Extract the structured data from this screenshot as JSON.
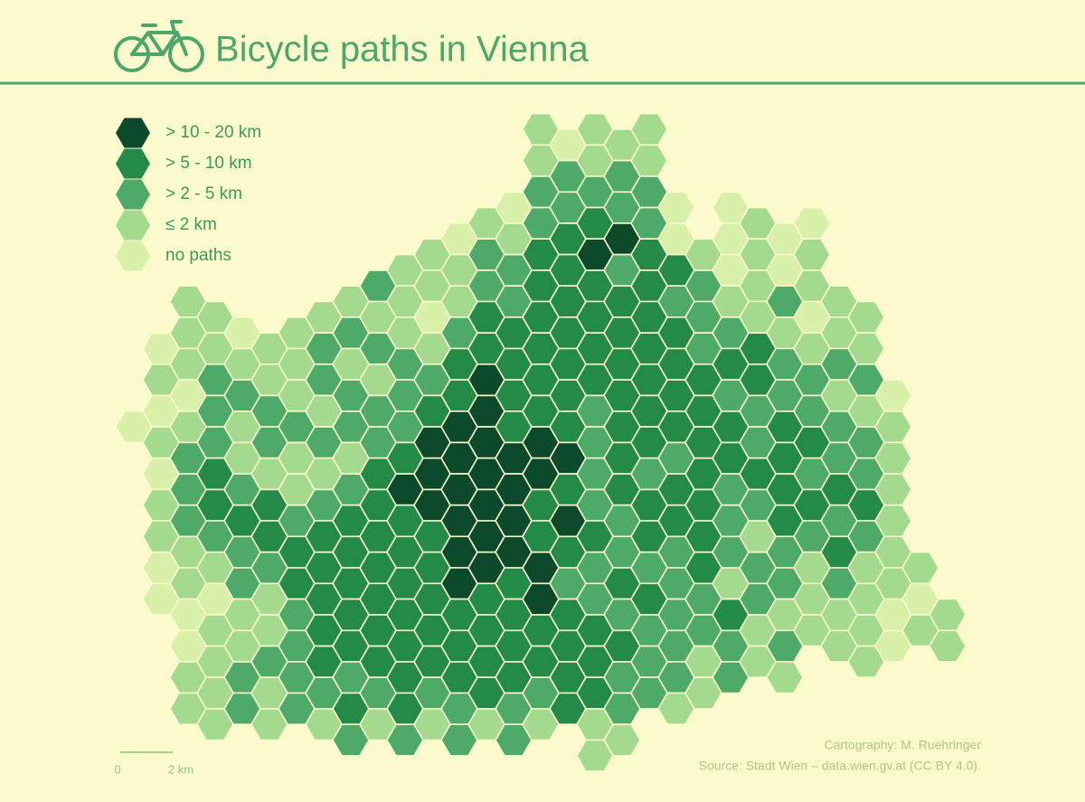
{
  "title": "Bicycle paths in Vienna",
  "legend": [
    {
      "label": "> 10 - 20 km",
      "color": "#0c4a2b"
    },
    {
      "label": "> 5 - 10 km",
      "color": "#238a47"
    },
    {
      "label": "> 2 - 5 km",
      "color": "#4eaa68"
    },
    {
      "label": "≤ 2 km",
      "color": "#a4da8d"
    },
    {
      "label": "no paths",
      "color": "#d8f0a8"
    }
  ],
  "grid": [
    [
      null,
      null,
      null,
      null,
      null,
      null,
      null,
      null,
      null,
      null,
      null,
      null,
      null,
      null,
      null,
      1,
      0,
      1,
      1,
      1,
      null,
      null,
      null,
      null,
      null,
      null,
      null,
      null,
      null,
      null,
      null
    ],
    [
      null,
      null,
      null,
      null,
      null,
      null,
      null,
      null,
      null,
      null,
      null,
      null,
      null,
      null,
      null,
      1,
      2,
      1,
      2,
      1,
      null,
      null,
      null,
      null,
      null,
      null,
      null,
      null,
      null,
      null,
      null
    ],
    [
      null,
      null,
      null,
      null,
      null,
      null,
      null,
      null,
      null,
      null,
      null,
      null,
      null,
      null,
      0,
      2,
      2,
      2,
      2,
      2,
      0,
      null,
      0,
      null,
      null,
      null,
      null,
      null,
      null,
      null,
      null
    ],
    [
      null,
      null,
      null,
      null,
      null,
      null,
      null,
      null,
      null,
      null,
      null,
      null,
      0,
      1,
      1,
      2,
      3,
      3,
      4,
      2,
      0,
      null,
      0,
      1,
      0,
      0,
      null,
      null,
      null,
      null,
      null
    ],
    [
      null,
      null,
      null,
      null,
      null,
      null,
      null,
      null,
      null,
      null,
      1,
      1,
      1,
      2,
      2,
      3,
      3,
      4,
      2,
      3,
      3,
      1,
      0,
      1,
      0,
      1,
      null,
      null,
      null,
      null,
      null
    ],
    [
      null,
      null,
      1,
      null,
      null,
      null,
      null,
      null,
      1,
      2,
      1,
      1,
      1,
      2,
      2,
      3,
      3,
      3,
      3,
      3,
      2,
      2,
      1,
      1,
      2,
      1,
      1,
      null,
      null,
      null,
      null
    ],
    [
      null,
      null,
      1,
      1,
      0,
      null,
      1,
      1,
      2,
      1,
      1,
      0,
      2,
      3,
      3,
      3,
      3,
      3,
      3,
      3,
      3,
      2,
      2,
      1,
      1,
      0,
      1,
      1,
      null,
      null,
      null
    ],
    [
      null,
      0,
      1,
      1,
      1,
      1,
      1,
      2,
      1,
      2,
      2,
      1,
      3,
      3,
      3,
      3,
      3,
      3,
      3,
      3,
      3,
      2,
      3,
      3,
      2,
      1,
      2,
      1,
      null,
      null,
      null
    ],
    [
      null,
      1,
      0,
      2,
      2,
      1,
      1,
      2,
      2,
      1,
      2,
      2,
      3,
      4,
      3,
      3,
      3,
      3,
      3,
      3,
      3,
      3,
      2,
      3,
      2,
      2,
      1,
      2,
      0,
      null,
      null
    ],
    [
      0,
      0,
      1,
      2,
      1,
      2,
      2,
      1,
      2,
      2,
      2,
      3,
      4,
      4,
      3,
      3,
      3,
      2,
      3,
      3,
      3,
      3,
      3,
      2,
      3,
      2,
      2,
      1,
      1,
      null,
      null
    ],
    [
      null,
      1,
      2,
      2,
      1,
      2,
      1,
      2,
      1,
      2,
      3,
      4,
      4,
      4,
      4,
      4,
      4,
      2,
      3,
      3,
      2,
      3,
      3,
      2,
      3,
      3,
      2,
      2,
      1,
      null,
      null
    ],
    [
      null,
      0,
      2,
      3,
      2,
      1,
      1,
      1,
      2,
      3,
      4,
      4,
      4,
      4,
      4,
      4,
      3,
      2,
      3,
      2,
      3,
      3,
      2,
      3,
      3,
      2,
      3,
      2,
      1,
      null,
      null
    ],
    [
      null,
      1,
      2,
      3,
      3,
      3,
      2,
      2,
      3,
      3,
      3,
      4,
      4,
      4,
      4,
      3,
      4,
      2,
      2,
      3,
      3,
      3,
      2,
      2,
      3,
      3,
      2,
      3,
      1,
      null,
      null
    ],
    [
      null,
      1,
      1,
      2,
      2,
      3,
      3,
      3,
      3,
      3,
      3,
      3,
      4,
      4,
      4,
      3,
      3,
      3,
      2,
      3,
      2,
      3,
      2,
      1,
      2,
      2,
      3,
      2,
      1,
      null,
      null
    ],
    [
      null,
      0,
      1,
      1,
      2,
      2,
      3,
      3,
      3,
      3,
      3,
      3,
      4,
      4,
      3,
      4,
      2,
      2,
      3,
      2,
      2,
      3,
      1,
      2,
      2,
      1,
      2,
      1,
      1,
      1,
      null
    ],
    [
      null,
      0,
      0,
      0,
      1,
      1,
      2,
      3,
      3,
      3,
      3,
      3,
      3,
      3,
      3,
      4,
      3,
      2,
      2,
      3,
      2,
      2,
      3,
      2,
      1,
      1,
      1,
      1,
      0,
      0,
      1
    ],
    [
      null,
      null,
      0,
      1,
      1,
      1,
      2,
      3,
      3,
      3,
      3,
      3,
      3,
      3,
      3,
      3,
      3,
      3,
      3,
      2,
      2,
      2,
      2,
      1,
      2,
      1,
      1,
      1,
      0,
      1,
      1
    ],
    [
      null,
      null,
      1,
      1,
      2,
      2,
      2,
      3,
      2,
      3,
      3,
      3,
      3,
      3,
      3,
      3,
      3,
      3,
      2,
      2,
      2,
      1,
      2,
      1,
      1,
      null,
      null,
      1,
      null,
      null,
      null
    ],
    [
      null,
      null,
      1,
      1,
      2,
      1,
      2,
      2,
      3,
      2,
      3,
      2,
      2,
      3,
      2,
      2,
      3,
      3,
      2,
      2,
      1,
      1,
      null,
      null,
      null,
      null,
      null,
      null,
      null,
      null,
      null
    ],
    [
      null,
      null,
      null,
      1,
      null,
      1,
      null,
      1,
      2,
      1,
      2,
      1,
      2,
      1,
      2,
      1,
      null,
      1,
      1,
      null,
      null,
      null,
      null,
      null,
      null,
      null,
      null,
      null,
      null,
      null,
      null
    ],
    [
      null,
      null,
      null,
      null,
      null,
      null,
      null,
      null,
      null,
      null,
      null,
      null,
      null,
      null,
      null,
      null,
      null,
      1,
      null,
      null,
      null,
      null,
      null,
      null,
      null,
      null,
      null,
      null,
      null,
      null,
      null
    ]
  ],
  "scale_bar": {
    "labels": [
      "0",
      "2 km"
    ]
  },
  "credits": [
    "Cartography: M. Ruehringer",
    "Source: Stadt Wien – data.wien.gv.at (CC BY 4.0)."
  ]
}
